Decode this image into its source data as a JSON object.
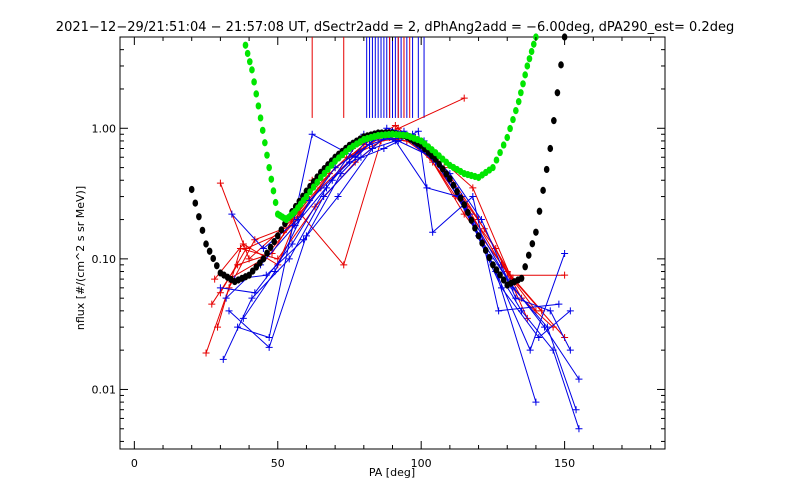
{
  "chart_data": {
    "type": "scatter",
    "title": "2021−12−29/21:51:04 − 21:57:08 UT, dSectr2add = 2, dPhAng2add = −6.00deg, dPA290_est=   0.2deg",
    "xlabel": "PA [deg]",
    "ylabel": "nflux [#/(cm^2 s sr MeV)]",
    "xlim": [
      -5,
      185
    ],
    "ylim": [
      0.0035,
      5.0
    ],
    "yscale": "log",
    "grid": false,
    "xticks": [
      {
        "v": 0,
        "label": "0"
      },
      {
        "v": 50,
        "label": "50"
      },
      {
        "v": 100,
        "label": "100"
      },
      {
        "v": 150,
        "label": "150"
      }
    ],
    "yticks": [
      {
        "v": 0.01,
        "label": "0.01"
      },
      {
        "v": 0.1,
        "label": "0.10"
      },
      {
        "v": 1.0,
        "label": "1.00"
      }
    ],
    "colors": {
      "red": "#e60000",
      "blue": "#0000e6",
      "black": "#000000",
      "green": "#00e600"
    },
    "series": [
      {
        "color": "red",
        "style": "line+plus",
        "traces": [
          [
            [
              25,
              0.019
            ],
            [
              33,
              0.06
            ],
            [
              42,
              0.14
            ],
            [
              55,
              0.18
            ],
            [
              68,
              0.45
            ],
            [
              80,
              0.75
            ],
            [
              91,
              1.05
            ],
            [
              103,
              0.6
            ],
            [
              115,
              0.22
            ],
            [
              130,
              0.08
            ],
            [
              142,
              0.04
            ]
          ],
          [
            [
              27,
              0.045
            ],
            [
              36,
              0.09
            ],
            [
              48,
              0.11
            ],
            [
              60,
              0.3
            ],
            [
              74,
              0.6
            ],
            [
              88,
              0.9
            ],
            [
              98,
              0.85
            ],
            [
              110,
              0.4
            ],
            [
              122,
              0.17
            ],
            [
              135,
              0.05
            ],
            [
              146,
              0.03
            ]
          ],
          [
            [
              30,
              0.055
            ],
            [
              39,
              0.12
            ],
            [
              52,
              0.16
            ],
            [
              65,
              0.35
            ],
            [
              78,
              0.65
            ],
            [
              89,
              0.85
            ],
            [
              100,
              0.75
            ],
            [
              112,
              0.3
            ],
            [
              126,
              0.12
            ],
            [
              137,
              0.035
            ]
          ],
          [
            [
              28,
              0.07
            ],
            [
              38,
              0.13
            ],
            [
              50,
              0.09
            ],
            [
              62,
              0.4
            ],
            [
              76,
              0.7
            ],
            [
              92,
              1.0
            ],
            [
              104,
              0.55
            ],
            [
              116,
              0.25
            ],
            [
              128,
              0.09
            ],
            [
              140,
              0.04
            ]
          ],
          [
            [
              30,
              0.38
            ],
            [
              40,
              0.1
            ],
            [
              55,
              0.2
            ],
            [
              70,
              0.5
            ],
            [
              85,
              0.85
            ],
            [
              95,
              0.8
            ],
            [
              108,
              0.5
            ],
            [
              120,
              0.2
            ],
            [
              132,
              0.07
            ],
            [
              150,
              0.025
            ]
          ],
          [
            [
              33,
              0.07
            ],
            [
              45,
              0.1
            ],
            [
              58,
              0.22
            ],
            [
              73,
              0.09
            ],
            [
              86,
              0.8
            ],
            [
              96,
              0.85
            ],
            [
              106,
              0.6
            ],
            [
              118,
              0.35
            ],
            [
              131,
              0.075
            ],
            [
              150,
              0.075
            ]
          ],
          [
            [
              29,
              0.03
            ],
            [
              37,
              0.12
            ],
            [
              50,
              0.1
            ],
            [
              63,
              0.25
            ],
            [
              77,
              0.55
            ],
            [
              90,
              0.95
            ],
            [
              115,
              1.7
            ]
          ]
        ]
      },
      {
        "color": "blue",
        "style": "line+plus",
        "traces": [
          [
            [
              31,
              0.017
            ],
            [
              41,
              0.05
            ],
            [
              54,
              0.1
            ],
            [
              66,
              0.3
            ],
            [
              79,
              0.6
            ],
            [
              90,
              0.95
            ],
            [
              101,
              0.8
            ],
            [
              112,
              0.35
            ],
            [
              124,
              0.1
            ],
            [
              135,
              0.04
            ],
            [
              146,
              0.02
            ],
            [
              155,
              0.005
            ]
          ],
          [
            [
              33,
              0.04
            ],
            [
              47,
              0.021
            ],
            [
              60,
              0.15
            ],
            [
              72,
              0.45
            ],
            [
              84,
              0.85
            ],
            [
              94,
              0.95
            ],
            [
              103,
              0.7
            ],
            [
              114,
              0.3
            ],
            [
              126,
              0.08
            ],
            [
              140,
              0.008
            ]
          ],
          [
            [
              34,
              0.22
            ],
            [
              45,
              0.12
            ],
            [
              57,
              0.2
            ],
            [
              70,
              0.5
            ],
            [
              82,
              0.75
            ],
            [
              93,
              0.9
            ],
            [
              105,
              0.55
            ],
            [
              117,
              0.22
            ],
            [
              130,
              0.07
            ],
            [
              143,
              0.03
            ],
            [
              155,
              0.012
            ]
          ],
          [
            [
              30,
              0.06
            ],
            [
              42,
              0.055
            ],
            [
              55,
              0.13
            ],
            [
              67,
              0.35
            ],
            [
              80,
              0.9
            ],
            [
              92,
              0.8
            ],
            [
              104,
              0.6
            ],
            [
              115,
              0.25
            ],
            [
              128,
              0.06
            ],
            [
              141,
              0.025
            ],
            [
              152,
              0.04
            ]
          ],
          [
            [
              32,
              0.05
            ],
            [
              44,
              0.09
            ],
            [
              56,
              0.18
            ],
            [
              69,
              0.4
            ],
            [
              81,
              0.8
            ],
            [
              95,
              0.85
            ],
            [
              107,
              0.5
            ],
            [
              120,
              0.15
            ],
            [
              132,
              0.06
            ],
            [
              144,
              0.03
            ],
            [
              154,
              0.007
            ]
          ],
          [
            [
              35,
              0.07
            ],
            [
              46,
              0.075
            ],
            [
              59,
              0.14
            ],
            [
              71,
              0.3
            ],
            [
              83,
              0.7
            ],
            [
              91,
              0.8
            ],
            [
              102,
              0.35
            ],
            [
              113,
              0.3
            ],
            [
              125,
              0.09
            ],
            [
              138,
              0.02
            ],
            [
              150,
              0.11
            ]
          ],
          [
            [
              36,
              0.03
            ],
            [
              47,
              0.025
            ],
            [
              62,
              0.9
            ],
            [
              77,
              0.6
            ],
            [
              88,
              1.0
            ],
            [
              97,
              0.9
            ],
            [
              110,
              0.45
            ],
            [
              121,
              0.2
            ],
            [
              133,
              0.05
            ],
            [
              145,
              0.04
            ],
            [
              152,
              0.02
            ]
          ],
          [
            [
              38,
              0.035
            ],
            [
              49,
              0.08
            ],
            [
              61,
              0.28
            ],
            [
              75,
              0.55
            ],
            [
              87,
              0.7
            ],
            [
              99,
              0.95
            ],
            [
              104,
              0.16
            ],
            [
              118,
              0.3
            ],
            [
              127,
              0.04
            ],
            [
              148,
              0.045
            ]
          ]
        ]
      },
      {
        "color": "black",
        "style": "thick-dots",
        "name": "",
        "x": [
          20,
          25,
          30,
          35,
          40,
          45,
          50,
          55,
          60,
          65,
          70,
          75,
          80,
          85,
          90,
          95,
          100,
          105,
          110,
          115,
          120,
          125,
          130,
          135,
          140,
          145,
          150
        ],
        "values": [
          0.34,
          0.13,
          0.078,
          0.067,
          0.075,
          0.1,
          0.15,
          0.23,
          0.33,
          0.46,
          0.6,
          0.74,
          0.86,
          0.92,
          0.92,
          0.86,
          0.74,
          0.58,
          0.41,
          0.26,
          0.15,
          0.09,
          0.063,
          0.071,
          0.16,
          0.7,
          5.0
        ]
      },
      {
        "color": "green",
        "style": "thick-dots",
        "name": "",
        "x": [
          38,
          41,
          44,
          47,
          50,
          53,
          56,
          60,
          65,
          70,
          75,
          80,
          85,
          90,
          95,
          100,
          105,
          110,
          115,
          120,
          125,
          130,
          134,
          137,
          140
        ],
        "values": [
          5.0,
          2.8,
          1.2,
          0.5,
          0.22,
          0.2,
          0.23,
          0.3,
          0.42,
          0.56,
          0.7,
          0.82,
          0.88,
          0.9,
          0.88,
          0.8,
          0.65,
          0.52,
          0.45,
          0.42,
          0.5,
          0.85,
          1.6,
          3.0,
          5.0
        ]
      },
      {
        "color": "blue",
        "style": "vertical-lines",
        "x": [
          81,
          82,
          83,
          84,
          85,
          86,
          87,
          88,
          89,
          90,
          91,
          92,
          93,
          94,
          95,
          97,
          99,
          101
        ],
        "y0": 1.2,
        "y1": 5.0
      },
      {
        "color": "red",
        "style": "vertical-lines",
        "x": [
          62,
          73,
          89,
          92,
          94,
          96
        ],
        "y0": 1.2,
        "y1": 5.0
      }
    ]
  }
}
